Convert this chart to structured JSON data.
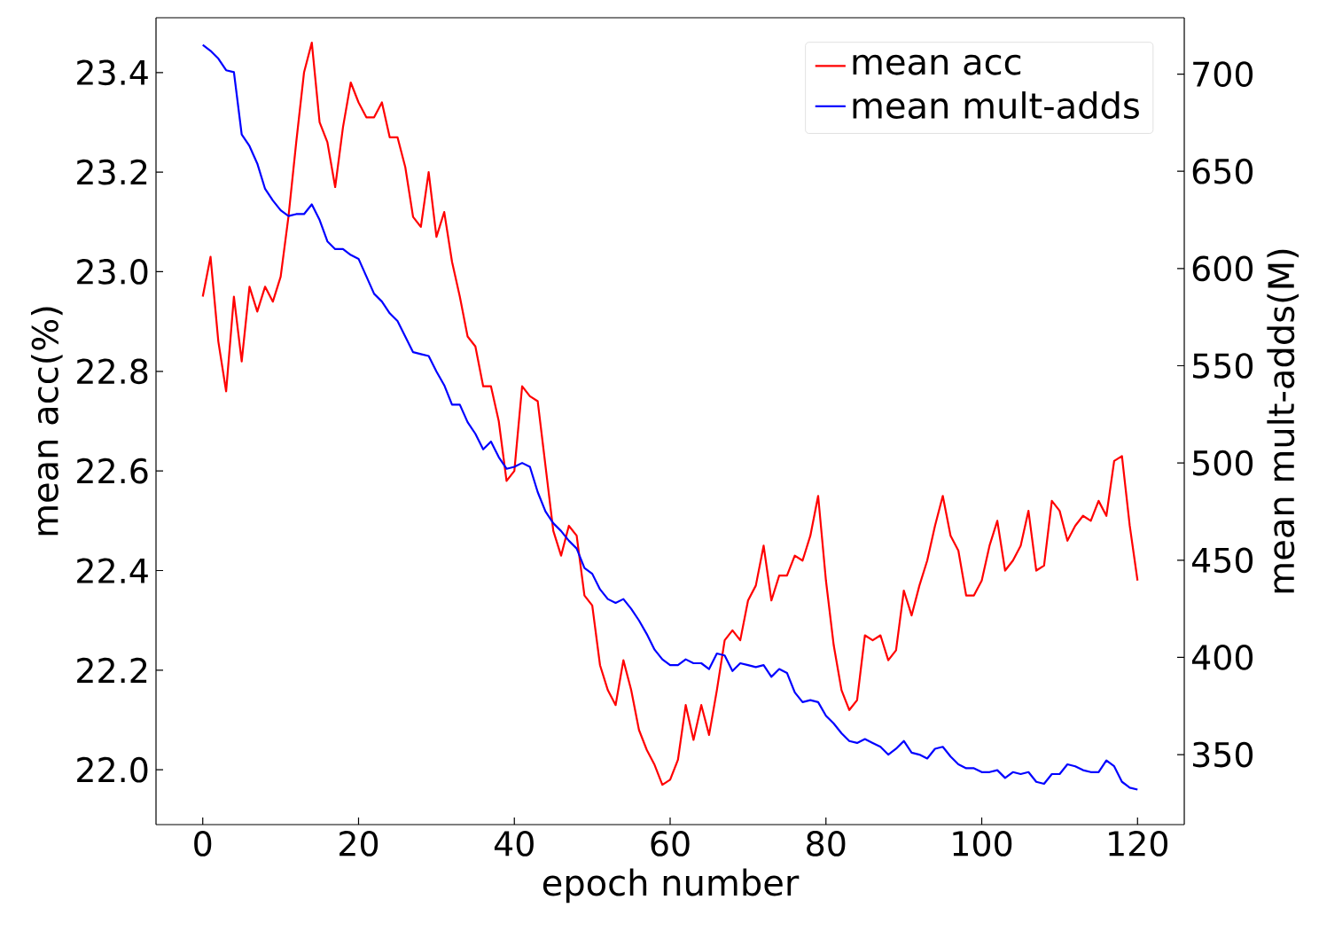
{
  "chart_data": {
    "type": "line",
    "xlabel": "epoch number",
    "ylabel": "mean acc(%)",
    "y2label": "mean mult-adds(M)",
    "x": [
      0,
      1,
      2,
      3,
      4,
      5,
      6,
      7,
      8,
      9,
      10,
      11,
      12,
      13,
      14,
      15,
      16,
      17,
      18,
      19,
      20,
      21,
      22,
      23,
      24,
      25,
      26,
      27,
      28,
      29,
      30,
      31,
      32,
      33,
      34,
      35,
      36,
      37,
      38,
      39,
      40,
      41,
      42,
      43,
      44,
      45,
      46,
      47,
      48,
      49,
      50,
      51,
      52,
      53,
      54,
      55,
      56,
      57,
      58,
      59,
      60,
      61,
      62,
      63,
      64,
      65,
      66,
      67,
      68,
      69,
      70,
      71,
      72,
      73,
      74,
      75,
      76,
      77,
      78,
      79,
      80,
      81,
      82,
      83,
      84,
      85,
      86,
      87,
      88,
      89,
      90,
      91,
      92,
      93,
      94,
      95,
      96,
      97,
      98,
      99,
      100,
      101,
      102,
      103,
      104,
      105,
      106,
      107,
      108,
      109,
      110,
      111,
      112,
      113,
      114,
      115,
      116,
      117,
      118,
      119,
      120
    ],
    "series": [
      {
        "name": "mean acc",
        "color": "#ff0000",
        "values": [
          22.95,
          23.03,
          22.86,
          22.76,
          22.95,
          22.82,
          22.97,
          22.92,
          22.97,
          22.94,
          22.99,
          23.11,
          23.26,
          23.4,
          23.46,
          23.3,
          23.26,
          23.17,
          23.29,
          23.38,
          23.34,
          23.31,
          23.31,
          23.34,
          23.27,
          23.27,
          23.21,
          23.11,
          23.09,
          23.2,
          23.07,
          23.12,
          23.02,
          22.95,
          22.87,
          22.85,
          22.77,
          22.77,
          22.7,
          22.58,
          22.6,
          22.77,
          22.75,
          22.74,
          22.61,
          22.48,
          22.43,
          22.49,
          22.47,
          22.35,
          22.33,
          22.21,
          22.16,
          22.13,
          22.22,
          22.16,
          22.08,
          22.04,
          22.01,
          21.97,
          21.98,
          22.02,
          22.13,
          22.06,
          22.13,
          22.07,
          22.16,
          22.26,
          22.28,
          22.26,
          22.34,
          22.37,
          22.45,
          22.34,
          22.39,
          22.39,
          22.43,
          22.42,
          22.47,
          22.55,
          22.38,
          22.25,
          22.16,
          22.12,
          22.14,
          22.27,
          22.26,
          22.27,
          22.22,
          22.24,
          22.36,
          22.31,
          22.37,
          22.42,
          22.49,
          22.55,
          22.47,
          22.44,
          22.35,
          22.35,
          22.38,
          22.45,
          22.5,
          22.4,
          22.42,
          22.45,
          22.52,
          22.4,
          22.41,
          22.54,
          22.52,
          22.46,
          22.49,
          22.51,
          22.5,
          22.54,
          22.51,
          22.62,
          22.63,
          22.49,
          22.38
        ]
      },
      {
        "name": "mean mult-adds",
        "color": "#0000ff",
        "axis": "y2",
        "values": [
          715,
          712,
          708,
          702,
          701,
          669,
          663,
          654,
          641,
          635,
          630,
          627,
          628,
          628,
          633,
          625,
          614,
          610,
          610,
          607,
          605,
          596,
          587,
          583,
          577,
          573,
          565,
          557,
          556,
          555,
          547,
          540,
          530,
          530,
          521,
          515,
          507,
          511,
          503,
          497,
          498,
          500,
          498,
          485,
          475,
          469,
          465,
          460,
          456,
          446,
          443,
          435,
          430,
          428,
          430,
          425,
          419,
          412,
          404,
          399,
          396,
          396,
          399,
          397,
          397,
          394,
          402,
          401,
          393,
          397,
          396,
          395,
          396,
          390,
          394,
          392,
          382,
          377,
          378,
          377,
          370,
          366,
          361,
          357,
          356,
          358,
          356,
          354,
          350,
          353,
          357,
          351,
          350,
          348,
          353,
          354,
          349,
          345,
          343,
          343,
          341,
          341,
          342,
          338,
          341,
          340,
          341,
          336,
          335,
          340,
          340,
          345,
          344,
          342,
          341,
          341,
          347,
          344,
          336,
          333,
          332
        ]
      }
    ],
    "xlim": [
      -6,
      126
    ],
    "xticks": [
      0,
      20,
      40,
      60,
      80,
      100,
      120
    ],
    "ylim": [
      21.89,
      23.51
    ],
    "yticks": [
      {
        "value": 22.0,
        "label": "22.0"
      },
      22.2,
      22.4,
      22.6,
      22.8,
      {
        "value": 23.0,
        "label": "23.0"
      },
      23.2,
      23.4
    ],
    "y2lim": [
      314,
      729
    ],
    "y2ticks": [
      350,
      400,
      450,
      500,
      550,
      600,
      650,
      700
    ],
    "grid": false,
    "legend": "top right",
    "marker": "none",
    "line_style": "solid"
  }
}
